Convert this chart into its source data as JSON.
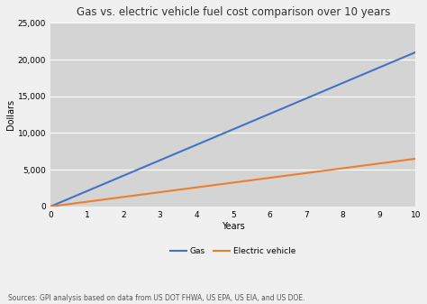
{
  "title": "Gas vs. electric vehicle fuel cost comparison over 10 years",
  "xlabel": "Years",
  "ylabel": "Dollars",
  "footnote": "Sources: GPI analysis based on data from US DOT FHWA, US EPA, US EIA, and US DOE.",
  "x_values": [
    0,
    1,
    2,
    3,
    4,
    5,
    6,
    7,
    8,
    9,
    10
  ],
  "gas_values": [
    0,
    2100,
    4200,
    6300,
    8400,
    10500,
    12600,
    14700,
    16800,
    18900,
    21000
  ],
  "ev_values": [
    0,
    650,
    1300,
    1950,
    2600,
    3250,
    3900,
    4550,
    5200,
    5850,
    6500
  ],
  "gas_color": "#4472C4",
  "ev_color": "#ED7D31",
  "gas_label": "Gas",
  "ev_label": "Electric vehicle",
  "plot_background_color": "#d4d4d4",
  "figure_background": "#f0f0f0",
  "ylim": [
    0,
    25000
  ],
  "xlim": [
    0,
    10
  ],
  "yticks": [
    0,
    5000,
    10000,
    15000,
    20000,
    25000
  ],
  "xticks": [
    0,
    1,
    2,
    3,
    4,
    5,
    6,
    7,
    8,
    9,
    10
  ],
  "title_fontsize": 8.5,
  "axis_label_fontsize": 7,
  "tick_fontsize": 6.5,
  "footnote_fontsize": 5.5,
  "legend_fontsize": 6.5,
  "line_width": 1.5
}
